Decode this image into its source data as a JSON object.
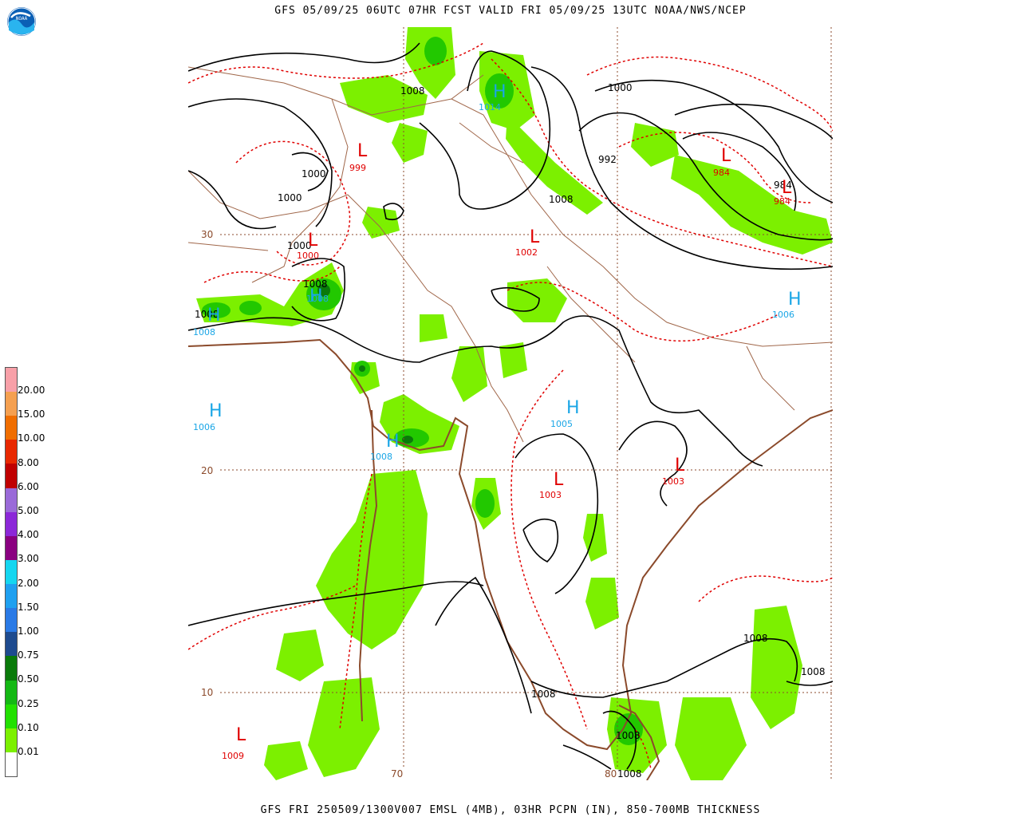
{
  "header": {
    "title": "GFS 05/09/25 06UTC 07HR FCST VALID FRI 05/09/25 13UTC NOAA/NWS/NCEP"
  },
  "footer": {
    "caption": "GFS FRI 250509/1300V007 EMSL (4MB), 03HR PCPN (IN), 850-700MB THICKNESS"
  },
  "logo": {
    "text": "NOAA",
    "icon": "noaa-logo-icon"
  },
  "legend": {
    "labels": [
      "20.00",
      "15.00",
      "10.00",
      "8.00",
      "6.00",
      "5.00",
      "4.00",
      "3.00",
      "2.00",
      "1.50",
      "1.00",
      "0.75",
      "0.50",
      "0.25",
      "0.10",
      "0.01"
    ],
    "colors": [
      "#ffffff",
      "#7cf000",
      "#22e000",
      "#14b814",
      "#0a7a0a",
      "#1e4b8f",
      "#2a7ae6",
      "#1fa0f0",
      "#15d6f0",
      "#8a0080",
      "#8c28d8",
      "#9a6ad8",
      "#c00000",
      "#e82800",
      "#f06e00",
      "#f5a050",
      "#f8a0a8"
    ]
  },
  "grid": {
    "lat_labels": [
      "30",
      "20",
      "10"
    ],
    "lon_labels": [
      "70",
      "80"
    ]
  },
  "highs": [
    {
      "letter": "H",
      "value": "1014"
    },
    {
      "letter": "H",
      "value": "1008"
    },
    {
      "letter": "H",
      "value": "1008"
    },
    {
      "letter": "H",
      "value": "1006"
    },
    {
      "letter": "H",
      "value": "1008"
    },
    {
      "letter": "H",
      "value": "1005"
    },
    {
      "letter": "H",
      "value": "1006"
    }
  ],
  "lows": [
    {
      "letter": "L",
      "value": "999"
    },
    {
      "letter": "L",
      "value": "1002"
    },
    {
      "letter": "L",
      "value": "1000"
    },
    {
      "letter": "L",
      "value": "984"
    },
    {
      "letter": "L",
      "value": "984"
    },
    {
      "letter": "L",
      "value": "1003"
    },
    {
      "letter": "L",
      "value": "1003"
    },
    {
      "letter": "L",
      "value": "1009"
    }
  ],
  "isobar_labels": [
    "1008",
    "1000",
    "1000",
    "1000",
    "1000",
    "1008",
    "1008",
    "992",
    "1008",
    "984",
    "1008",
    "1008",
    "1008",
    "1008",
    "1008"
  ],
  "colors": {
    "high": "#1aa6e6",
    "low": "#e00000",
    "coast": "#8b4a2b",
    "precip_light": "#7cf000",
    "precip_mid": "#22c800",
    "precip_dark": "#0a7a0a",
    "thickness": "#e00000",
    "isobar": "#000000"
  }
}
